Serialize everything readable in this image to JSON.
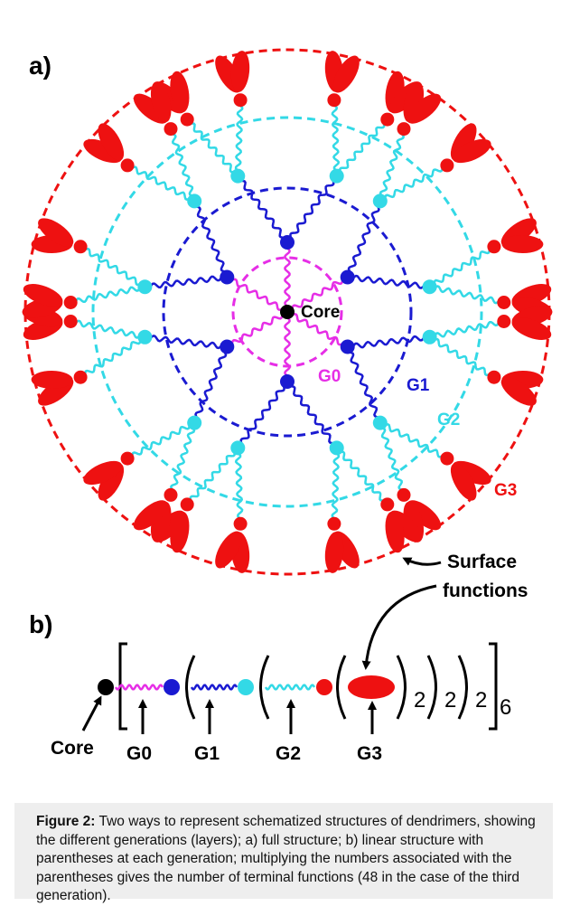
{
  "figure": {
    "panel_a_label": "a)",
    "panel_b_label": "b)",
    "labels": {
      "core": "Core",
      "g0": "G0",
      "g1": "G1",
      "g2": "G2",
      "g3": "G3",
      "surface_line1": "Surface",
      "surface_line2": "functions"
    },
    "linear": {
      "sub1": "2",
      "sub2": "2",
      "sub3": "2",
      "sub4": "6",
      "core": "Core",
      "g0": "G0",
      "g1": "G1",
      "g2": "G2",
      "g3": "G3"
    },
    "colors": {
      "core": "#000000",
      "g0": "#e62ee6",
      "g1": "#1a1ad1",
      "g2": "#33d9e6",
      "g3": "#ee1111"
    }
  },
  "caption": {
    "title": "Figure 2:",
    "text": "Two ways to represent schematized structures of dendrimers, showing the different generations (layers); a) full structure; b) linear structure with parentheses at each generation; multiplying the numbers associated with the parentheses gives the number of terminal functions (48 in the case of the third generation)."
  }
}
